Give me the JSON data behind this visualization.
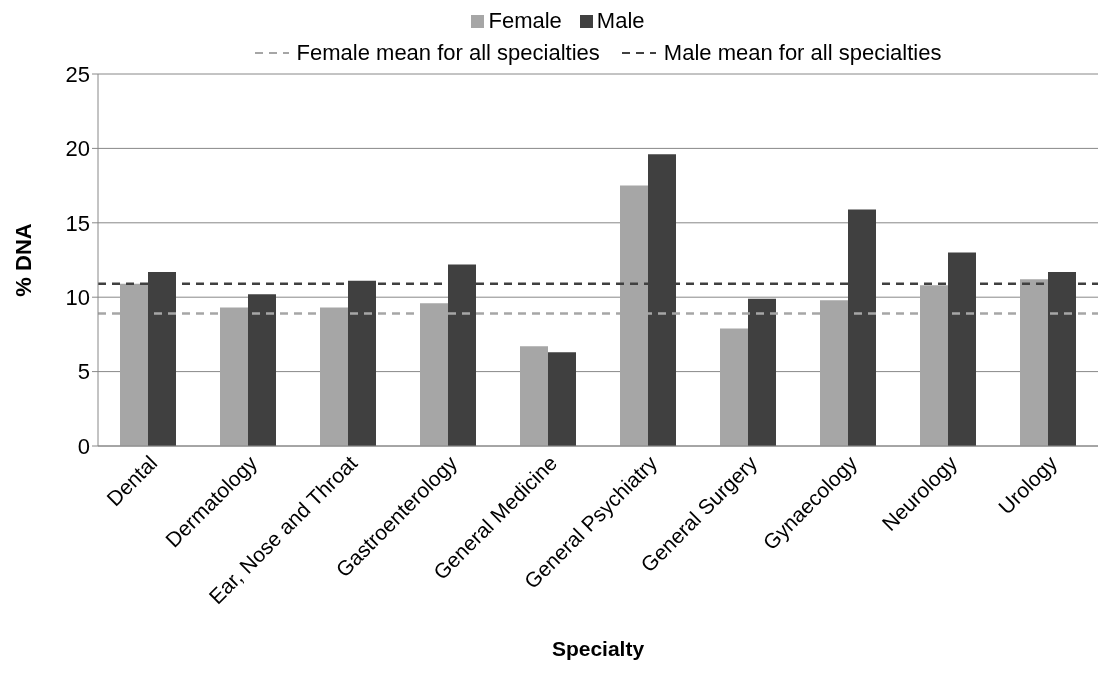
{
  "chart_data": {
    "type": "bar",
    "xlabel": "Specialty",
    "ylabel": "% DNA",
    "categories": [
      "Dental",
      "Dermatology",
      "Ear, Nose and Throat",
      "Gastroenterology",
      "General Medicine",
      "General Psychiatry",
      "General Surgery",
      "Gynaecology",
      "Neurology",
      "Urology"
    ],
    "series": [
      {
        "name": "Female",
        "color": "#a6a6a6",
        "values": [
          10.9,
          9.3,
          9.3,
          9.6,
          6.7,
          17.5,
          7.9,
          9.8,
          10.8,
          11.2
        ]
      },
      {
        "name": "Male",
        "color": "#404040",
        "values": [
          11.7,
          10.2,
          11.1,
          12.2,
          6.3,
          19.6,
          9.9,
          15.9,
          13.0,
          11.7
        ]
      }
    ],
    "ylim": [
      0,
      25
    ],
    "yticks": [
      0,
      5,
      10,
      15,
      20,
      25
    ],
    "grid": "y",
    "legend": "top",
    "ref_lines": [
      {
        "axis": "y",
        "value": 8.9,
        "label": "Female mean for all specialties",
        "color": "#a6a6a6",
        "line_style": "dashed"
      },
      {
        "axis": "y",
        "value": 10.9,
        "label": "Male mean for all specialties",
        "color": "#404040",
        "line_style": "dashed"
      }
    ]
  }
}
